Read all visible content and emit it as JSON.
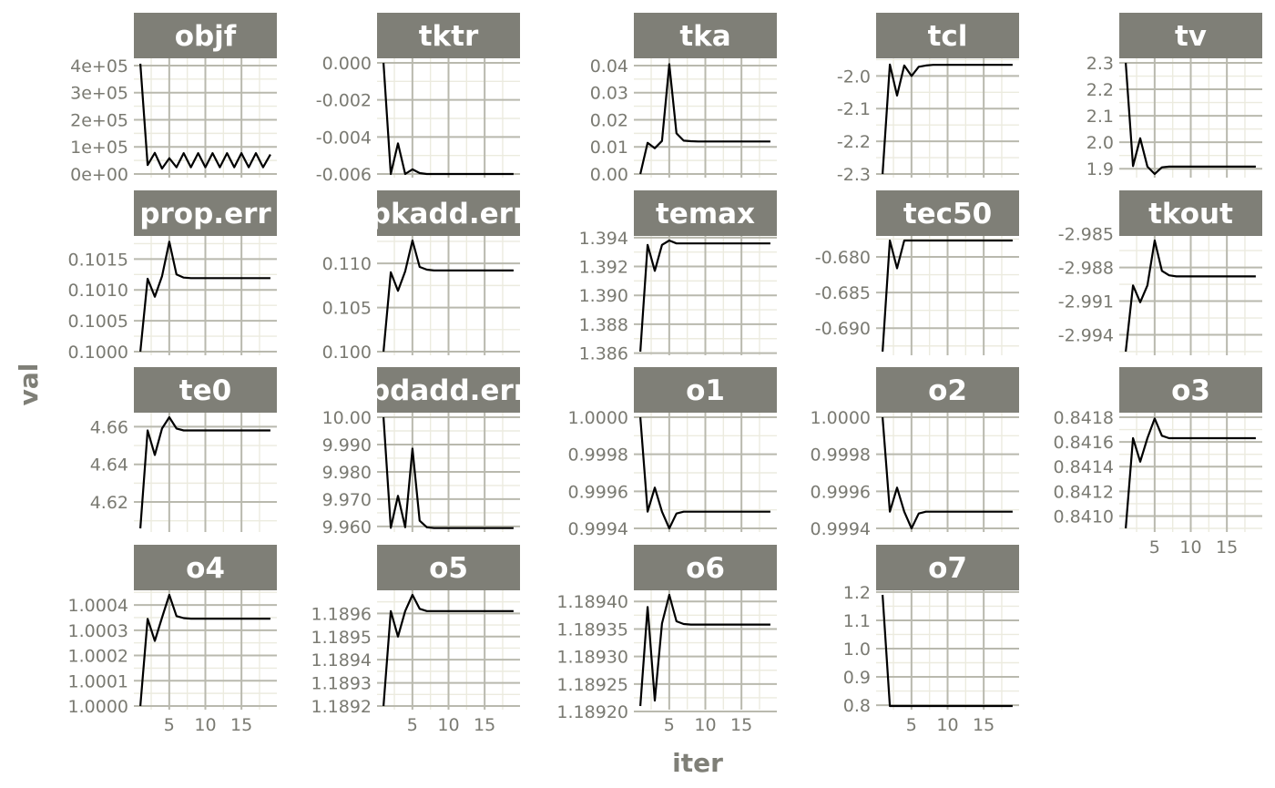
{
  "chart_data": {
    "type": "line",
    "xlabel": "iter",
    "ylabel": "val",
    "x_ticks": [
      5,
      10,
      15
    ],
    "x_range": [
      1,
      19
    ],
    "grid": true,
    "legend": "none",
    "line_color": "#000000",
    "strip_color": "#7f7f77",
    "panels": [
      {
        "name": "objf",
        "ylim": [
          0,
          410000
        ],
        "yticks": [
          0,
          100000,
          200000,
          300000,
          400000
        ],
        "ytick_labels": [
          "0e+00",
          "1e+05",
          "2e+05",
          "3e+05",
          "4e+05"
        ],
        "values": [
          407000,
          33000,
          78000,
          20000,
          58000,
          25000,
          77000,
          25000,
          77000,
          25000,
          77000,
          25000,
          77000,
          25000,
          77000,
          25000,
          77000,
          25000,
          72000
        ]
      },
      {
        "name": "tktr",
        "ylim": [
          -0.006,
          0.0
        ],
        "yticks": [
          -0.006,
          -0.004,
          -0.002,
          0.0
        ],
        "ytick_labels": [
          "-0.006",
          "-0.004",
          "-0.002",
          "0.000"
        ],
        "values": [
          0.0,
          -0.006,
          -0.00435,
          -0.006,
          -0.00575,
          -0.00595,
          -0.006,
          -0.006,
          -0.006,
          -0.006,
          -0.006,
          -0.006,
          -0.006,
          -0.006,
          -0.006,
          -0.006,
          -0.006,
          -0.006,
          -0.006
        ]
      },
      {
        "name": "tka",
        "ylim": [
          0.0,
          0.041
        ],
        "yticks": [
          0.0,
          0.01,
          0.02,
          0.03,
          0.04
        ],
        "ytick_labels": [
          "0.00",
          "0.01",
          "0.02",
          "0.03",
          "0.04"
        ],
        "values": [
          0.0,
          0.0115,
          0.0095,
          0.0122,
          0.0405,
          0.015,
          0.0123,
          0.0121,
          0.012,
          0.012,
          0.012,
          0.012,
          0.012,
          0.012,
          0.012,
          0.012,
          0.012,
          0.012,
          0.012
        ]
      },
      {
        "name": "tcl",
        "ylim": [
          -2.3,
          -1.96
        ],
        "yticks": [
          -2.3,
          -2.2,
          -2.1,
          -2.0
        ],
        "ytick_labels": [
          "-2.3",
          "-2.2",
          "-2.1",
          "-2.0"
        ],
        "values": [
          -2.3,
          -1.965,
          -2.06,
          -1.968,
          -2.0,
          -1.972,
          -1.968,
          -1.966,
          -1.966,
          -1.966,
          -1.966,
          -1.966,
          -1.966,
          -1.966,
          -1.966,
          -1.966,
          -1.966,
          -1.966,
          -1.966
        ]
      },
      {
        "name": "tv",
        "ylim": [
          1.88,
          2.3
        ],
        "yticks": [
          1.9,
          2.0,
          2.1,
          2.2,
          2.3
        ],
        "ytick_labels": [
          "1.9",
          "2.0",
          "2.1",
          "2.2",
          "2.3"
        ],
        "values": [
          2.3,
          1.91,
          2.015,
          1.908,
          1.88,
          1.905,
          1.908,
          1.908,
          1.908,
          1.908,
          1.908,
          1.908,
          1.908,
          1.908,
          1.908,
          1.908,
          1.908,
          1.908,
          1.908
        ]
      },
      {
        "name": "prop.err",
        "ylim": [
          0.1,
          0.1018
        ],
        "yticks": [
          0.1,
          0.1005,
          0.101,
          0.1015
        ],
        "ytick_labels": [
          "0.1000",
          "0.1005",
          "0.1010",
          "0.1015"
        ],
        "values": [
          0.1,
          0.10118,
          0.10089,
          0.10122,
          0.10178,
          0.10125,
          0.1012,
          0.10119,
          0.10119,
          0.10119,
          0.10119,
          0.10119,
          0.10119,
          0.10119,
          0.10119,
          0.10119,
          0.10119,
          0.10119,
          0.10119
        ]
      },
      {
        "name": "pkadd.err",
        "ylim": [
          0.1,
          0.1126
        ],
        "yticks": [
          0.1,
          0.105,
          0.11
        ],
        "ytick_labels": [
          "0.100",
          "0.105",
          "0.110"
        ],
        "values": [
          0.1,
          0.109,
          0.1069,
          0.1091,
          0.1126,
          0.1096,
          0.1093,
          0.1092,
          0.1092,
          0.1092,
          0.1092,
          0.1092,
          0.1092,
          0.1092,
          0.1092,
          0.1092,
          0.1092,
          0.1092,
          0.1092
        ]
      },
      {
        "name": "temax",
        "ylim": [
          1.3861,
          1.3938
        ],
        "yticks": [
          1.386,
          1.388,
          1.39,
          1.392,
          1.394
        ],
        "ytick_labels": [
          "1.386",
          "1.388",
          "1.390",
          "1.392",
          "1.394"
        ],
        "values": [
          1.3861,
          1.3935,
          1.3917,
          1.3935,
          1.3938,
          1.3936,
          1.3936,
          1.3936,
          1.3936,
          1.3936,
          1.3936,
          1.3936,
          1.3936,
          1.3936,
          1.3936,
          1.3936,
          1.3936,
          1.3936,
          1.3936
        ]
      },
      {
        "name": "tec50",
        "ylim": [
          -0.6933,
          -0.6777
        ],
        "yticks": [
          -0.69,
          -0.685,
          -0.68
        ],
        "ytick_labels": [
          "-0.690",
          "-0.685",
          "-0.680"
        ],
        "values": [
          -0.6933,
          -0.6777,
          -0.6816,
          -0.6777,
          -0.6777,
          -0.6777,
          -0.6777,
          -0.6777,
          -0.6777,
          -0.6777,
          -0.6777,
          -0.6777,
          -0.6777,
          -0.6777,
          -0.6777,
          -0.6777,
          -0.6777,
          -0.6777,
          -0.6777
        ]
      },
      {
        "name": "tkout",
        "ylim": [
          -2.9955,
          -2.9856
        ],
        "yticks": [
          -2.994,
          -2.991,
          -2.988,
          -2.985
        ],
        "ytick_labels": [
          "-2.994",
          "-2.991",
          "-2.988",
          "-2.985"
        ],
        "values": [
          -2.9955,
          -2.9896,
          -2.9911,
          -2.9896,
          -2.9856,
          -2.9883,
          -2.9887,
          -2.9888,
          -2.9888,
          -2.9888,
          -2.9888,
          -2.9888,
          -2.9888,
          -2.9888,
          -2.9888,
          -2.9888,
          -2.9888,
          -2.9888,
          -2.9888
        ]
      },
      {
        "name": "te0",
        "ylim": [
          4.606,
          4.665
        ],
        "yticks": [
          4.62,
          4.64,
          4.66
        ],
        "ytick_labels": [
          "4.62",
          "4.64",
          "4.66"
        ],
        "values": [
          4.606,
          4.658,
          4.645,
          4.659,
          4.665,
          4.659,
          4.658,
          4.658,
          4.658,
          4.658,
          4.658,
          4.658,
          4.658,
          4.658,
          4.658,
          4.658,
          4.658,
          4.658,
          4.658
        ]
      },
      {
        "name": "pdadd.err",
        "ylim": [
          9.9593,
          10.0
        ],
        "yticks": [
          9.96,
          9.97,
          9.98,
          9.99,
          10.0
        ],
        "ytick_labels": [
          "9.960",
          "9.970",
          "9.980",
          "9.990",
          "10.00"
        ],
        "values": [
          10.0,
          9.9595,
          9.9712,
          9.9597,
          9.9885,
          9.9621,
          9.9597,
          9.9594,
          9.9594,
          9.9594,
          9.9594,
          9.9594,
          9.9594,
          9.9594,
          9.9594,
          9.9594,
          9.9594,
          9.9594,
          9.9594
        ]
      },
      {
        "name": "o1",
        "ylim": [
          0.9994,
          1.0
        ],
        "yticks": [
          0.9994,
          0.9996,
          0.9998,
          1.0
        ],
        "ytick_labels": [
          "0.9994",
          "0.9996",
          "0.9998",
          "1.0000"
        ],
        "values": [
          1.0,
          0.99949,
          0.99962,
          0.99949,
          0.9994,
          0.99948,
          0.99949,
          0.99949,
          0.99949,
          0.99949,
          0.99949,
          0.99949,
          0.99949,
          0.99949,
          0.99949,
          0.99949,
          0.99949,
          0.99949,
          0.99949
        ]
      },
      {
        "name": "o2",
        "ylim": [
          0.9994,
          1.0
        ],
        "yticks": [
          0.9994,
          0.9996,
          0.9998,
          1.0
        ],
        "ytick_labels": [
          "0.9994",
          "0.9996",
          "0.9998",
          "1.0000"
        ],
        "values": [
          1.0,
          0.99949,
          0.99962,
          0.99949,
          0.9994,
          0.99948,
          0.99949,
          0.99949,
          0.99949,
          0.99949,
          0.99949,
          0.99949,
          0.99949,
          0.99949,
          0.99949,
          0.99949,
          0.99949,
          0.99949,
          0.99949
        ]
      },
      {
        "name": "o3",
        "ylim": [
          0.8409,
          0.8418
        ],
        "yticks": [
          0.841,
          0.8412,
          0.8414,
          0.8416,
          0.8418
        ],
        "ytick_labels": [
          "0.8410",
          "0.8412",
          "0.8414",
          "0.8416",
          "0.8418"
        ],
        "values": [
          0.8409,
          0.84163,
          0.84144,
          0.84163,
          0.84179,
          0.84165,
          0.84163,
          0.84163,
          0.84163,
          0.84163,
          0.84163,
          0.84163,
          0.84163,
          0.84163,
          0.84163,
          0.84163,
          0.84163,
          0.84163,
          0.84163
        ]
      },
      {
        "name": "o4",
        "ylim": [
          1.0,
          1.00044
        ],
        "yticks": [
          1.0,
          1.0001,
          1.0002,
          1.0003,
          1.0004
        ],
        "ytick_labels": [
          "1.0000",
          "1.0001",
          "1.0002",
          "1.0003",
          "1.0004"
        ],
        "values": [
          1.0,
          1.000345,
          1.000258,
          1.00035,
          1.00044,
          1.000356,
          1.000348,
          1.000346,
          1.000346,
          1.000346,
          1.000346,
          1.000346,
          1.000346,
          1.000346,
          1.000346,
          1.000346,
          1.000346,
          1.000346,
          1.000346
        ]
      },
      {
        "name": "o5",
        "ylim": [
          1.1892,
          1.18968
        ],
        "yticks": [
          1.1892,
          1.1893,
          1.1894,
          1.1895,
          1.1896
        ],
        "ytick_labels": [
          "1.1892",
          "1.1893",
          "1.1894",
          "1.1895",
          "1.1896"
        ],
        "values": [
          1.1892,
          1.18961,
          1.1895,
          1.18961,
          1.18968,
          1.18962,
          1.18961,
          1.18961,
          1.18961,
          1.18961,
          1.18961,
          1.18961,
          1.18961,
          1.18961,
          1.18961,
          1.18961,
          1.18961,
          1.18961,
          1.18961
        ]
      },
      {
        "name": "o6",
        "ylim": [
          1.18921,
          1.189412
        ],
        "yticks": [
          1.1892,
          1.18925,
          1.1893,
          1.18935,
          1.1894
        ],
        "ytick_labels": [
          "1.18920",
          "1.18925",
          "1.18930",
          "1.18935",
          "1.18940"
        ],
        "values": [
          1.18921,
          1.18939,
          1.18922,
          1.18936,
          1.189412,
          1.189364,
          1.189359,
          1.189358,
          1.189358,
          1.189358,
          1.189358,
          1.189358,
          1.189358,
          1.189358,
          1.189358,
          1.189358,
          1.189358,
          1.189358,
          1.189358
        ]
      },
      {
        "name": "o7",
        "ylim": [
          0.797,
          1.19
        ],
        "yticks": [
          0.8,
          0.9,
          1.0,
          1.1,
          1.2
        ],
        "ytick_labels": [
          "0.8",
          "0.9",
          "1.0",
          "1.1",
          "1.2"
        ],
        "values": [
          1.19,
          0.797,
          0.797,
          0.797,
          0.797,
          0.797,
          0.797,
          0.797,
          0.797,
          0.797,
          0.797,
          0.797,
          0.797,
          0.797,
          0.797,
          0.797,
          0.797,
          0.797,
          0.797
        ]
      }
    ]
  }
}
